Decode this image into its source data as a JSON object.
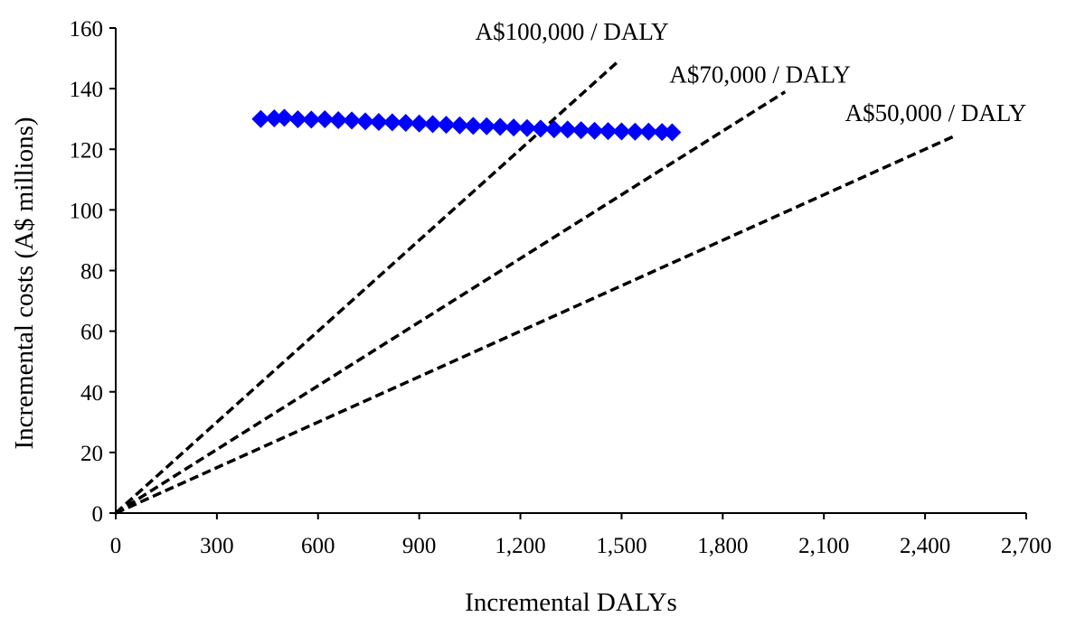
{
  "chart_data": {
    "type": "scatter",
    "xlabel": "Incremental DALYs",
    "ylabel": "Incremental costs (A$ millions)",
    "xlim": [
      0,
      2700
    ],
    "ylim": [
      0,
      160
    ],
    "x_ticks": [
      0,
      300,
      600,
      900,
      1200,
      1500,
      1800,
      2100,
      2400,
      2700
    ],
    "x_tick_labels": [
      "0",
      "300",
      "600",
      "900",
      "1,200",
      "1,500",
      "1,800",
      "2,100",
      "2,400",
      "2,700"
    ],
    "y_ticks": [
      0,
      20,
      40,
      60,
      80,
      100,
      120,
      140,
      160
    ],
    "y_tick_labels": [
      "0",
      "20",
      "40",
      "60",
      "80",
      "100",
      "120",
      "140",
      "160"
    ],
    "grid": false,
    "legend": "none",
    "marker_color": "#0000FF",
    "series": [
      {
        "marker": "diamond",
        "x": [
          430,
          470,
          500,
          540,
          580,
          620,
          660,
          700,
          740,
          780,
          820,
          860,
          900,
          940,
          980,
          1020,
          1060,
          1100,
          1140,
          1180,
          1220,
          1260,
          1300,
          1340,
          1380,
          1420,
          1460,
          1500,
          1540,
          1580,
          1620,
          1650
        ],
        "y": [
          130,
          130.2,
          130.4,
          129.9,
          129.8,
          129.9,
          129.6,
          129.5,
          129.2,
          129.0,
          128.9,
          128.7,
          128.5,
          128.3,
          128.1,
          127.9,
          127.7,
          127.6,
          127.4,
          127.2,
          127.0,
          126.8,
          126.6,
          126.5,
          126.3,
          126.1,
          126.0,
          125.9,
          125.8,
          125.8,
          125.7,
          125.6
        ]
      }
    ],
    "threshold_lines": [
      {
        "label": "A$100,000 / DALY",
        "slope": 0.1,
        "x_end": 1495
      },
      {
        "label": "A$70,000 / DALY",
        "slope": 0.07,
        "x_end": 1985
      },
      {
        "label": "A$50,000 / DALY",
        "slope": 0.05,
        "x_end": 2490
      }
    ]
  }
}
